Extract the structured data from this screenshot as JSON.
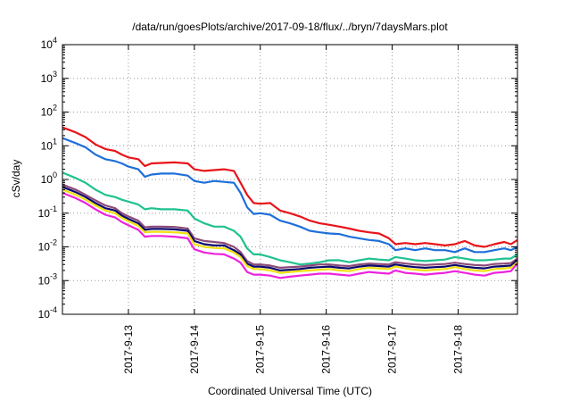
{
  "chart_data": {
    "type": "line",
    "title": "/data/run/goesPlots/archive/2017-09-18/flux/../bryn/7daysMars.plot",
    "xlabel": "Coordinated Universal Time (UTC)",
    "ylabel": "cSv/day",
    "yscale": "log",
    "ylim": [
      0.0001,
      10000
    ],
    "xlim": [
      0,
      6.9
    ],
    "grid": true,
    "legend": "none",
    "x_ticks": [
      {
        "value": 1,
        "label": "2017-9-13"
      },
      {
        "value": 2,
        "label": "2017-9-14"
      },
      {
        "value": 3,
        "label": "2017-9-15"
      },
      {
        "value": 4,
        "label": "2017-9-16"
      },
      {
        "value": 5,
        "label": "2017-9-17"
      },
      {
        "value": 6,
        "label": "2017-9-18"
      }
    ],
    "y_ticks": [
      {
        "value": 0.0001,
        "base": "10",
        "exp": "-4"
      },
      {
        "value": 0.001,
        "base": "10",
        "exp": "-3"
      },
      {
        "value": 0.01,
        "base": "10",
        "exp": "-2"
      },
      {
        "value": 0.1,
        "base": "10",
        "exp": "-1"
      },
      {
        "value": 1,
        "base": "10",
        "exp": "0"
      },
      {
        "value": 10,
        "base": "10",
        "exp": "1"
      },
      {
        "value": 100,
        "base": "10",
        "exp": "2"
      },
      {
        "value": 1000,
        "base": "10",
        "exp": "3"
      },
      {
        "value": 10000,
        "base": "10",
        "exp": "4"
      }
    ],
    "x": [
      0,
      0.2,
      0.35,
      0.5,
      0.65,
      0.8,
      0.9,
      1.0,
      1.15,
      1.25,
      1.35,
      1.5,
      1.7,
      1.9,
      2.0,
      2.15,
      2.3,
      2.45,
      2.6,
      2.7,
      2.8,
      2.9,
      3.0,
      3.15,
      3.3,
      3.45,
      3.6,
      3.75,
      3.9,
      4.05,
      4.2,
      4.35,
      4.5,
      4.65,
      4.8,
      4.95,
      5.05,
      5.2,
      5.35,
      5.5,
      5.65,
      5.8,
      5.95,
      6.1,
      6.25,
      6.4,
      6.55,
      6.7,
      6.8,
      6.9
    ],
    "series": [
      {
        "color": "#e8141a",
        "values": [
          35,
          25,
          18,
          11,
          8,
          7,
          5.5,
          4.5,
          4,
          2.5,
          3,
          3.1,
          3.2,
          3,
          2,
          1.8,
          1.9,
          2,
          1.8,
          0.8,
          0.35,
          0.2,
          0.19,
          0.2,
          0.12,
          0.1,
          0.08,
          0.06,
          0.05,
          0.045,
          0.04,
          0.035,
          0.03,
          0.027,
          0.025,
          0.018,
          0.012,
          0.013,
          0.012,
          0.013,
          0.012,
          0.011,
          0.012,
          0.015,
          0.011,
          0.01,
          0.012,
          0.014,
          0.012,
          0.016
        ]
      },
      {
        "color": "#1e6fd9",
        "values": [
          17,
          12,
          9,
          5.5,
          4,
          3.5,
          3,
          2.4,
          2,
          1.2,
          1.4,
          1.5,
          1.5,
          1.3,
          0.9,
          0.8,
          0.9,
          0.85,
          0.8,
          0.4,
          0.15,
          0.095,
          0.1,
          0.09,
          0.06,
          0.05,
          0.04,
          0.03,
          0.027,
          0.025,
          0.024,
          0.02,
          0.018,
          0.016,
          0.015,
          0.012,
          0.008,
          0.009,
          0.008,
          0.009,
          0.008,
          0.008,
          0.007,
          0.009,
          0.007,
          0.007,
          0.008,
          0.009,
          0.008,
          0.01
        ]
      },
      {
        "color": "#1fc28f",
        "values": [
          1.6,
          1.1,
          0.8,
          0.5,
          0.35,
          0.3,
          0.25,
          0.22,
          0.18,
          0.13,
          0.14,
          0.13,
          0.13,
          0.12,
          0.07,
          0.05,
          0.04,
          0.04,
          0.03,
          0.02,
          0.009,
          0.006,
          0.006,
          0.005,
          0.004,
          0.0035,
          0.003,
          0.0032,
          0.0035,
          0.004,
          0.004,
          0.0035,
          0.004,
          0.0045,
          0.0042,
          0.004,
          0.005,
          0.0045,
          0.004,
          0.0038,
          0.004,
          0.0042,
          0.005,
          0.0045,
          0.004,
          0.004,
          0.0042,
          0.0045,
          0.0045,
          0.006
        ]
      },
      {
        "color": "#8b4a78",
        "values": [
          0.7,
          0.5,
          0.35,
          0.24,
          0.17,
          0.14,
          0.1,
          0.08,
          0.06,
          0.038,
          0.04,
          0.04,
          0.039,
          0.035,
          0.018,
          0.015,
          0.014,
          0.013,
          0.01,
          0.007,
          0.0038,
          0.003,
          0.003,
          0.0028,
          0.0024,
          0.0025,
          0.0026,
          0.0028,
          0.003,
          0.003,
          0.0028,
          0.0027,
          0.003,
          0.0032,
          0.0031,
          0.003,
          0.0035,
          0.0032,
          0.003,
          0.0029,
          0.003,
          0.0031,
          0.0034,
          0.0031,
          0.0029,
          0.0028,
          0.0031,
          0.0032,
          0.0033,
          0.0045
        ]
      },
      {
        "color": "#0a0a6e",
        "values": [
          0.6,
          0.42,
          0.3,
          0.2,
          0.14,
          0.12,
          0.085,
          0.068,
          0.05,
          0.032,
          0.034,
          0.034,
          0.033,
          0.03,
          0.015,
          0.012,
          0.011,
          0.011,
          0.008,
          0.006,
          0.0032,
          0.0026,
          0.0026,
          0.0024,
          0.002,
          0.0021,
          0.0022,
          0.0024,
          0.0025,
          0.0026,
          0.0024,
          0.0023,
          0.0026,
          0.0028,
          0.0027,
          0.0026,
          0.003,
          0.0027,
          0.0025,
          0.0024,
          0.0025,
          0.0026,
          0.0029,
          0.0026,
          0.0024,
          0.0023,
          0.0026,
          0.0027,
          0.0028,
          0.004
        ]
      },
      {
        "color": "#f0e010",
        "values": [
          0.5,
          0.35,
          0.25,
          0.17,
          0.12,
          0.1,
          0.072,
          0.058,
          0.042,
          0.027,
          0.028,
          0.028,
          0.027,
          0.025,
          0.012,
          0.01,
          0.0093,
          0.009,
          0.0068,
          0.005,
          0.0027,
          0.0022,
          0.0022,
          0.002,
          0.0017,
          0.0018,
          0.0019,
          0.002,
          0.0021,
          0.0022,
          0.002,
          0.0019,
          0.0022,
          0.0024,
          0.0023,
          0.0022,
          0.0026,
          0.0023,
          0.0021,
          0.002,
          0.0021,
          0.0022,
          0.0025,
          0.0022,
          0.002,
          0.0019,
          0.0022,
          0.0023,
          0.0024,
          0.0035
        ]
      },
      {
        "color": "#ee22dd",
        "values": [
          0.4,
          0.28,
          0.2,
          0.13,
          0.09,
          0.075,
          0.055,
          0.044,
          0.032,
          0.02,
          0.021,
          0.021,
          0.02,
          0.018,
          0.0085,
          0.0068,
          0.0062,
          0.006,
          0.0045,
          0.0034,
          0.0018,
          0.0015,
          0.0015,
          0.0014,
          0.0012,
          0.0013,
          0.0014,
          0.0015,
          0.0016,
          0.0016,
          0.0015,
          0.0014,
          0.0016,
          0.0018,
          0.0017,
          0.0016,
          0.002,
          0.0017,
          0.0016,
          0.0015,
          0.0016,
          0.0017,
          0.0019,
          0.0017,
          0.0015,
          0.0014,
          0.0017,
          0.0018,
          0.0019,
          0.0032
        ]
      }
    ]
  }
}
